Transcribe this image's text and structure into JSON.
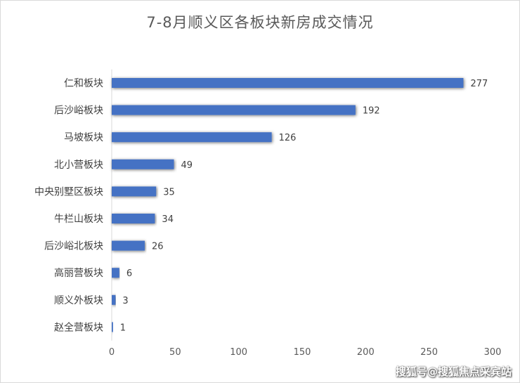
{
  "chart_data": {
    "type": "bar",
    "orientation": "horizontal",
    "title": "7-8月顺义区各板块新房成交情况",
    "categories": [
      "仁和板块",
      "后沙峪板块",
      "马坡板块",
      "北小营板块",
      "中央别墅区板块",
      "牛栏山板块",
      "后沙峪北板块",
      "高丽营板块",
      "顺义外板块",
      "赵全营板块"
    ],
    "values": [
      277,
      192,
      126,
      49,
      35,
      34,
      26,
      6,
      3,
      1
    ],
    "xlim": [
      0,
      300
    ],
    "xticks": [
      0,
      50,
      100,
      150,
      200,
      250,
      300
    ],
    "bar_color": "#4472c4",
    "grid": false,
    "legend": "none"
  },
  "watermark": "搜狐号@搜狐焦点采宾站"
}
